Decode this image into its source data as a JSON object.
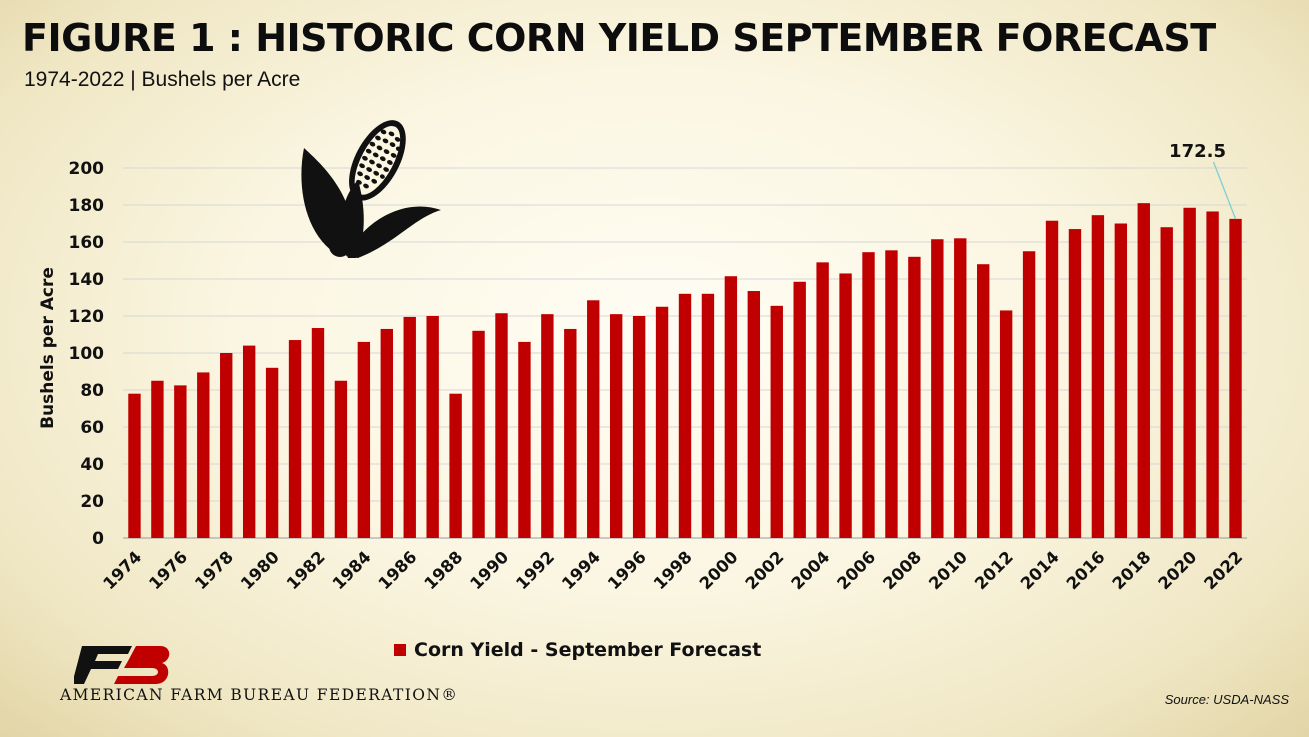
{
  "header": {
    "title": "FIGURE 1 :  HISTORIC CORN YIELD SEPTEMBER FORECAST",
    "subtitle": "1974-2022 | Bushels per Acre"
  },
  "footer": {
    "org_name": "AMERICAN FARM BUREAU FEDERATION®",
    "source": "Source: USDA-NASS"
  },
  "colors": {
    "bar": "#c00000",
    "grid": "#d6d6d6",
    "callout": "#7ecfd6"
  },
  "icons": [
    "corn-icon",
    "fb-logo"
  ],
  "chart_data": {
    "type": "bar",
    "ylabel": "Bushels per Acre",
    "ylim": [
      0,
      200
    ],
    "yticks": [
      0,
      20,
      40,
      60,
      80,
      100,
      120,
      140,
      160,
      180,
      200
    ],
    "grid": true,
    "legend_position": "bottom",
    "categories": [
      "1974",
      "1975",
      "1976",
      "1977",
      "1978",
      "1979",
      "1980",
      "1981",
      "1982",
      "1983",
      "1984",
      "1985",
      "1986",
      "1987",
      "1988",
      "1989",
      "1990",
      "1991",
      "1992",
      "1993",
      "1994",
      "1995",
      "1996",
      "1997",
      "1998",
      "1999",
      "2000",
      "2001",
      "2002",
      "2003",
      "2004",
      "2005",
      "2006",
      "2007",
      "2008",
      "2009",
      "2010",
      "2011",
      "2012",
      "2013",
      "2014",
      "2015",
      "2016",
      "2017",
      "2018",
      "2019",
      "2020",
      "2021",
      "2022"
    ],
    "series": [
      {
        "name": "Corn Yield - September Forecast",
        "values": [
          78,
          85,
          82.5,
          89.5,
          100,
          104,
          92,
          107,
          113.5,
          85,
          106,
          113,
          119.5,
          120,
          78,
          112,
          121.5,
          106,
          121,
          113,
          128.5,
          121,
          120,
          125,
          132,
          132,
          141.5,
          133.5,
          125.5,
          138.5,
          149,
          143,
          154.5,
          155.5,
          152,
          161.5,
          162,
          148,
          123,
          155,
          171.5,
          167,
          174.5,
          170,
          181,
          168,
          178.5,
          176.5,
          172.5
        ]
      }
    ],
    "annotations": [
      {
        "text": "172.5",
        "category": "2022"
      }
    ]
  }
}
